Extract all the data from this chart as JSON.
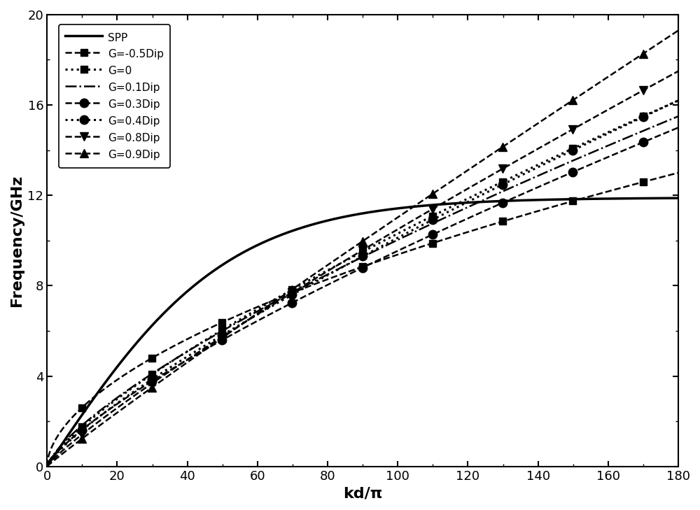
{
  "title": "",
  "xlabel": "kd/π",
  "ylabel": "Frequency/GHz",
  "xlim": [
    0,
    180
  ],
  "ylim": [
    0,
    20
  ],
  "xticks": [
    0,
    20,
    40,
    60,
    80,
    100,
    120,
    140,
    160,
    180
  ],
  "yticks": [
    0,
    4,
    8,
    12,
    16,
    20
  ],
  "curves": [
    {
      "label": "SPP",
      "linestyle": "-",
      "linewidth": 2.5,
      "marker": "none",
      "markersize": 0,
      "markevery": 20,
      "type": "spp",
      "f_sp": 11.9,
      "alpha": 3.5
    },
    {
      "label": "G=-0.5Dip",
      "linestyle": "--",
      "linewidth": 1.8,
      "marker": "s",
      "markersize": 7,
      "markevery": 20,
      "type": "arcsin",
      "f_max": 13.0,
      "curve_alpha": 1.8
    },
    {
      "label": "G=0",
      "linestyle": ":",
      "linewidth": 2.2,
      "marker": "s",
      "markersize": 7,
      "markevery": 20,
      "type": "arcsin",
      "f_max": 16.2,
      "curve_alpha": 1.3
    },
    {
      "label": "G=0.1Dip",
      "linestyle": "-.",
      "linewidth": 1.8,
      "marker": "none",
      "markersize": 0,
      "markevery": 20,
      "type": "arcsin",
      "f_max": 15.5,
      "curve_alpha": 1.35
    },
    {
      "label": "G=0.3Dip",
      "linestyle": "--",
      "linewidth": 1.8,
      "marker": "o",
      "markersize": 9,
      "markevery": 20,
      "type": "arcsin",
      "f_max": 15.0,
      "curve_alpha": 1.3
    },
    {
      "label": "G=0.4Dip",
      "linestyle": ":",
      "linewidth": 2.2,
      "marker": "o",
      "markersize": 9,
      "markevery": 20,
      "type": "arcsin",
      "f_max": 16.2,
      "curve_alpha": 1.25
    },
    {
      "label": "G=0.8Dip",
      "linestyle": "--",
      "linewidth": 1.8,
      "marker": "v",
      "markersize": 9,
      "markevery": 20,
      "type": "arcsin",
      "f_max": 17.5,
      "curve_alpha": 1.15
    },
    {
      "label": "G=0.9Dip",
      "linestyle": "--",
      "linewidth": 1.8,
      "marker": "^",
      "markersize": 9,
      "markevery": 20,
      "type": "arcsin",
      "f_max": 19.3,
      "curve_alpha": 1.05
    }
  ]
}
